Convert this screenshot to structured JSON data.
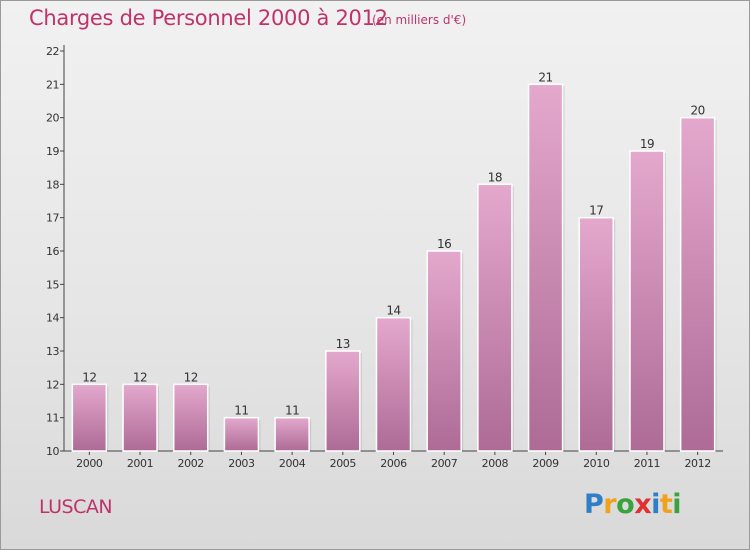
{
  "title": "Charges de Personnel 2000 à 2012",
  "subtitle": "(en milliers d'€)",
  "commune": "LUSCAN",
  "logo": {
    "letters": [
      "P",
      "r",
      "o",
      "x",
      "i",
      "t",
      "i"
    ],
    "colors": [
      "#2f7fc8",
      "#f0a21e",
      "#3aa23a",
      "#e03030",
      "#2f7fc8",
      "#f0a21e",
      "#3aa23a"
    ]
  },
  "colors": {
    "accent": "#c0336a",
    "bar_top": "#e4a8cd",
    "bar_bottom": "#ad6b96"
  },
  "chart_data": {
    "type": "bar",
    "title": "Charges de Personnel 2000 à 2012",
    "subtitle": "(en milliers d'€)",
    "categories": [
      "2000",
      "2001",
      "2002",
      "2003",
      "2004",
      "2005",
      "2006",
      "2007",
      "2008",
      "2009",
      "2010",
      "2011",
      "2012"
    ],
    "values": [
      12,
      12,
      12,
      11,
      11,
      13,
      14,
      16,
      18,
      21,
      17,
      19,
      20
    ],
    "ylim": [
      10,
      22
    ],
    "yticks": [
      10,
      11,
      12,
      13,
      14,
      15,
      16,
      17,
      18,
      19,
      20,
      21,
      22
    ],
    "data_labels": true,
    "grid": false
  }
}
